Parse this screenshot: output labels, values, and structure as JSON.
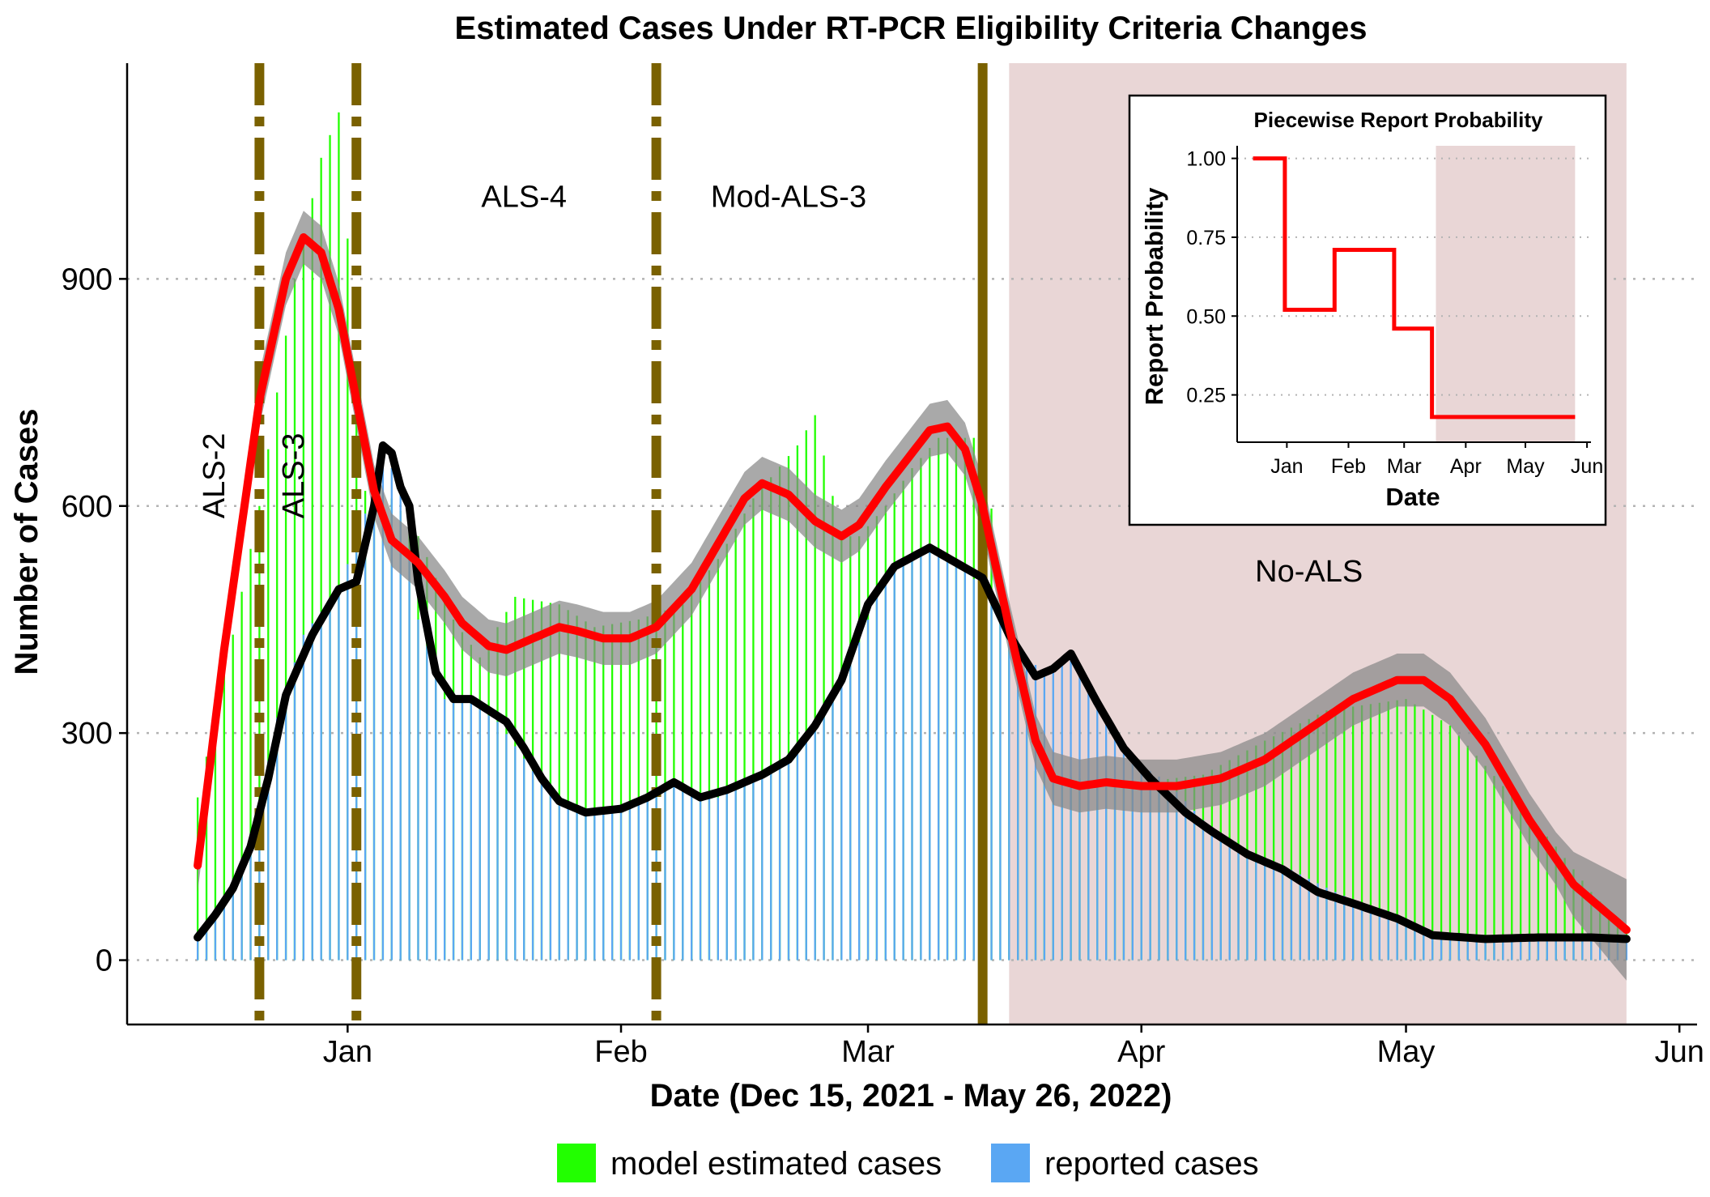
{
  "chart_data": {
    "type": "bar",
    "title": "Estimated Cases Under RT-PCR Eligibility Criteria Changes",
    "xlabel": "Date (Dec 15, 2021 - May 26, 2022)",
    "ylabel": "Number of Cases",
    "x_ticks": [
      "Jan",
      "Feb",
      "Mar",
      "Apr",
      "May",
      "Jun"
    ],
    "x_tick_dates": [
      "2022-01-01",
      "2022-02-01",
      "2022-03-01",
      "2022-04-01",
      "2022-05-01",
      "2022-06-01"
    ],
    "y_ticks": [
      "0",
      "300",
      "600",
      "900"
    ],
    "y_tick_values": [
      0,
      300,
      600,
      900
    ],
    "xlim": [
      "2021-12-07",
      "2022-06-03"
    ],
    "ylim": [
      -85,
      1185
    ],
    "grid": "horizontal dotted",
    "colors": {
      "model": "#22ff00",
      "reported": "#5aa7f3",
      "model_line": "#ff0000",
      "reported_line": "#000000",
      "ribbon": "#888888",
      "policy_line": "#7a6100",
      "shade": "#e9d6d6"
    },
    "legend": {
      "position": "bottom",
      "items": [
        {
          "label": "model estimated cases",
          "color": "#22ff00"
        },
        {
          "label": "reported cases",
          "color": "#5aa7f3"
        }
      ]
    },
    "policy_changes": [
      {
        "date": "2021-12-22",
        "style": "dash-dot"
      },
      {
        "date": "2022-01-02",
        "style": "dash-dot"
      },
      {
        "date": "2022-02-05",
        "style": "dash-dot"
      },
      {
        "date": "2022-03-14",
        "style": "solid"
      }
    ],
    "shaded_period": {
      "start": "2022-03-17",
      "end": "2022-05-26"
    },
    "region_labels": [
      {
        "text": "ALS-2",
        "date": "2021-12-18",
        "y": 640,
        "rotated": true
      },
      {
        "text": "ALS-3",
        "date": "2021-12-27",
        "y": 640,
        "rotated": true
      },
      {
        "text": "ALS-4",
        "date": "2022-01-21",
        "y": 995,
        "rotated": false
      },
      {
        "text": "Mod-ALS-3",
        "date": "2022-02-20",
        "y": 995,
        "rotated": false
      },
      {
        "text": "No-ALS",
        "date": "2022-04-20",
        "y": 500,
        "rotated": false
      }
    ],
    "series": [
      {
        "name": "model estimated cases",
        "kind": "bars",
        "points": [
          [
            "2021-12-15",
            215
          ],
          [
            "2021-12-19",
            430
          ],
          [
            "2021-12-22",
            600
          ],
          [
            "2021-12-26",
            900
          ],
          [
            "2021-12-29",
            1060
          ],
          [
            "2021-12-31",
            1120
          ],
          [
            "2022-01-03",
            620
          ],
          [
            "2022-01-06",
            610
          ],
          [
            "2022-01-09",
            560
          ],
          [
            "2022-01-13",
            450
          ],
          [
            "2022-01-16",
            400
          ],
          [
            "2022-01-20",
            480
          ],
          [
            "2022-01-25",
            470
          ],
          [
            "2022-01-29",
            440
          ],
          [
            "2022-02-03",
            450
          ],
          [
            "2022-02-08",
            470
          ],
          [
            "2022-02-12",
            530
          ],
          [
            "2022-02-16",
            610
          ],
          [
            "2022-02-21",
            680
          ],
          [
            "2022-02-23",
            720
          ],
          [
            "2022-02-26",
            560
          ],
          [
            "2022-02-28",
            560
          ],
          [
            "2022-03-03",
            600
          ],
          [
            "2022-03-06",
            650
          ],
          [
            "2022-03-09",
            690
          ],
          [
            "2022-03-12",
            690
          ],
          [
            "2022-03-14",
            690
          ],
          [
            "2022-03-17",
            410
          ],
          [
            "2022-03-20",
            250
          ],
          [
            "2022-03-25",
            240
          ],
          [
            "2022-04-01",
            235
          ],
          [
            "2022-04-08",
            245
          ],
          [
            "2022-04-15",
            290
          ],
          [
            "2022-04-22",
            330
          ],
          [
            "2022-05-01",
            345
          ],
          [
            "2022-05-06",
            310
          ],
          [
            "2022-05-12",
            230
          ],
          [
            "2022-05-18",
            150
          ],
          [
            "2022-05-22",
            90
          ],
          [
            "2022-05-26",
            40
          ]
        ]
      },
      {
        "name": "reported cases",
        "kind": "bars",
        "points": [
          [
            "2021-12-15",
            30
          ],
          [
            "2021-12-18",
            80
          ],
          [
            "2021-12-21",
            150
          ],
          [
            "2021-12-24",
            320
          ],
          [
            "2021-12-27",
            430
          ],
          [
            "2021-12-31",
            490
          ],
          [
            "2022-01-03",
            590
          ],
          [
            "2022-01-05",
            680
          ],
          [
            "2022-01-07",
            620
          ],
          [
            "2022-01-09",
            450
          ],
          [
            "2022-01-12",
            345
          ],
          [
            "2022-01-15",
            340
          ],
          [
            "2022-01-18",
            315
          ],
          [
            "2022-01-22",
            250
          ],
          [
            "2022-01-25",
            205
          ],
          [
            "2022-01-29",
            195
          ],
          [
            "2022-02-02",
            205
          ],
          [
            "2022-02-07",
            230
          ],
          [
            "2022-02-12",
            215
          ],
          [
            "2022-02-16",
            240
          ],
          [
            "2022-02-21",
            275
          ],
          [
            "2022-02-24",
            330
          ],
          [
            "2022-02-28",
            420
          ],
          [
            "2022-03-03",
            510
          ],
          [
            "2022-03-08",
            545
          ],
          [
            "2022-03-12",
            520
          ],
          [
            "2022-03-15",
            470
          ],
          [
            "2022-03-18",
            410
          ],
          [
            "2022-03-21",
            380
          ],
          [
            "2022-03-24",
            405
          ],
          [
            "2022-03-27",
            335
          ],
          [
            "2022-03-31",
            265
          ],
          [
            "2022-04-04",
            235
          ],
          [
            "2022-04-08",
            185
          ],
          [
            "2022-04-12",
            150
          ],
          [
            "2022-04-17",
            125
          ],
          [
            "2022-04-23",
            90
          ],
          [
            "2022-04-30",
            55
          ],
          [
            "2022-05-06",
            30
          ],
          [
            "2022-05-14",
            28
          ],
          [
            "2022-05-20",
            32
          ],
          [
            "2022-05-26",
            28
          ]
        ]
      },
      {
        "name": "model estimate (smoothed)",
        "kind": "line",
        "ribbon_halfwidth": 35,
        "points": [
          [
            "2021-12-15",
            125
          ],
          [
            "2021-12-18",
            410
          ],
          [
            "2021-12-22",
            740
          ],
          [
            "2021-12-25",
            900
          ],
          [
            "2021-12-27",
            955
          ],
          [
            "2021-12-29",
            935
          ],
          [
            "2021-12-31",
            860
          ],
          [
            "2022-01-02",
            740
          ],
          [
            "2022-01-04",
            620
          ],
          [
            "2022-01-06",
            555
          ],
          [
            "2022-01-09",
            525
          ],
          [
            "2022-01-12",
            480
          ],
          [
            "2022-01-14",
            445
          ],
          [
            "2022-01-17",
            415
          ],
          [
            "2022-01-19",
            410
          ],
          [
            "2022-01-22",
            425
          ],
          [
            "2022-01-25",
            440
          ],
          [
            "2022-01-27",
            435
          ],
          [
            "2022-01-30",
            425
          ],
          [
            "2022-02-02",
            425
          ],
          [
            "2022-02-05",
            440
          ],
          [
            "2022-02-09",
            490
          ],
          [
            "2022-02-12",
            550
          ],
          [
            "2022-02-15",
            610
          ],
          [
            "2022-02-17",
            630
          ],
          [
            "2022-02-20",
            615
          ],
          [
            "2022-02-23",
            580
          ],
          [
            "2022-02-26",
            560
          ],
          [
            "2022-02-28",
            575
          ],
          [
            "2022-03-03",
            625
          ],
          [
            "2022-03-06",
            670
          ],
          [
            "2022-03-08",
            700
          ],
          [
            "2022-03-10",
            705
          ],
          [
            "2022-03-12",
            675
          ],
          [
            "2022-03-14",
            600
          ],
          [
            "2022-03-17",
            440
          ],
          [
            "2022-03-20",
            290
          ],
          [
            "2022-03-22",
            240
          ],
          [
            "2022-03-25",
            230
          ],
          [
            "2022-03-28",
            235
          ],
          [
            "2022-04-01",
            230
          ],
          [
            "2022-04-05",
            230
          ],
          [
            "2022-04-10",
            240
          ],
          [
            "2022-04-15",
            265
          ],
          [
            "2022-04-20",
            305
          ],
          [
            "2022-04-25",
            345
          ],
          [
            "2022-04-30",
            370
          ],
          [
            "2022-05-03",
            370
          ],
          [
            "2022-05-06",
            345
          ],
          [
            "2022-05-10",
            285
          ],
          [
            "2022-05-15",
            185
          ],
          [
            "2022-05-20",
            100
          ],
          [
            "2022-05-26",
            40
          ]
        ]
      },
      {
        "name": "reported (smoothed)",
        "kind": "line",
        "points": [
          [
            "2021-12-15",
            30
          ],
          [
            "2021-12-17",
            60
          ],
          [
            "2021-12-19",
            95
          ],
          [
            "2021-12-21",
            150
          ],
          [
            "2021-12-23",
            240
          ],
          [
            "2021-12-25",
            350
          ],
          [
            "2021-12-28",
            430
          ],
          [
            "2021-12-31",
            490
          ],
          [
            "2022-01-02",
            500
          ],
          [
            "2022-01-04",
            600
          ],
          [
            "2022-01-05",
            680
          ],
          [
            "2022-01-06",
            670
          ],
          [
            "2022-01-07",
            625
          ],
          [
            "2022-01-08",
            600
          ],
          [
            "2022-01-09",
            500
          ],
          [
            "2022-01-11",
            380
          ],
          [
            "2022-01-13",
            345
          ],
          [
            "2022-01-15",
            345
          ],
          [
            "2022-01-17",
            330
          ],
          [
            "2022-01-19",
            315
          ],
          [
            "2022-01-21",
            280
          ],
          [
            "2022-01-23",
            240
          ],
          [
            "2022-01-25",
            210
          ],
          [
            "2022-01-28",
            195
          ],
          [
            "2022-02-01",
            200
          ],
          [
            "2022-02-04",
            215
          ],
          [
            "2022-02-07",
            235
          ],
          [
            "2022-02-10",
            215
          ],
          [
            "2022-02-13",
            225
          ],
          [
            "2022-02-17",
            245
          ],
          [
            "2022-02-20",
            265
          ],
          [
            "2022-02-23",
            310
          ],
          [
            "2022-02-26",
            370
          ],
          [
            "2022-03-01",
            470
          ],
          [
            "2022-03-04",
            520
          ],
          [
            "2022-03-08",
            545
          ],
          [
            "2022-03-11",
            525
          ],
          [
            "2022-03-14",
            505
          ],
          [
            "2022-03-17",
            430
          ],
          [
            "2022-03-20",
            375
          ],
          [
            "2022-03-22",
            385
          ],
          [
            "2022-03-24",
            405
          ],
          [
            "2022-03-27",
            340
          ],
          [
            "2022-03-30",
            280
          ],
          [
            "2022-04-02",
            240
          ],
          [
            "2022-04-06",
            195
          ],
          [
            "2022-04-09",
            170
          ],
          [
            "2022-04-13",
            140
          ],
          [
            "2022-04-17",
            120
          ],
          [
            "2022-04-21",
            90
          ],
          [
            "2022-04-25",
            75
          ],
          [
            "2022-04-30",
            55
          ],
          [
            "2022-05-04",
            33
          ],
          [
            "2022-05-10",
            28
          ],
          [
            "2022-05-16",
            30
          ],
          [
            "2022-05-22",
            30
          ],
          [
            "2022-05-26",
            28
          ]
        ]
      }
    ],
    "inset": {
      "type": "line",
      "title": "Piecewise Report Probability",
      "xlabel": "Date",
      "ylabel": "Report Probability",
      "x_ticks": [
        "Jan",
        "Feb",
        "Mar",
        "Apr",
        "May",
        "Jun"
      ],
      "x_tick_dates": [
        "2022-01-01",
        "2022-02-01",
        "2022-03-01",
        "2022-04-01",
        "2022-05-01",
        "2022-06-01"
      ],
      "y_ticks": [
        "0.25",
        "0.50",
        "0.75",
        "1.00"
      ],
      "y_tick_values": [
        0.25,
        0.5,
        0.75,
        1.0
      ],
      "xlim": [
        "2021-12-07",
        "2022-06-03"
      ],
      "ylim": [
        0.1,
        1.04
      ],
      "shaded_period": {
        "start": "2022-03-17",
        "end": "2022-05-26"
      },
      "series": [
        {
          "step_points": [
            [
              "2021-12-15",
              1.0
            ],
            [
              "2021-12-31",
              1.0
            ],
            [
              "2021-12-31",
              0.52
            ],
            [
              "2022-01-25",
              0.52
            ],
            [
              "2022-01-25",
              0.71
            ],
            [
              "2022-02-24",
              0.71
            ],
            [
              "2022-02-24",
              0.46
            ],
            [
              "2022-03-15",
              0.46
            ],
            [
              "2022-03-15",
              0.18
            ],
            [
              "2022-05-26",
              0.18
            ]
          ]
        }
      ]
    }
  }
}
